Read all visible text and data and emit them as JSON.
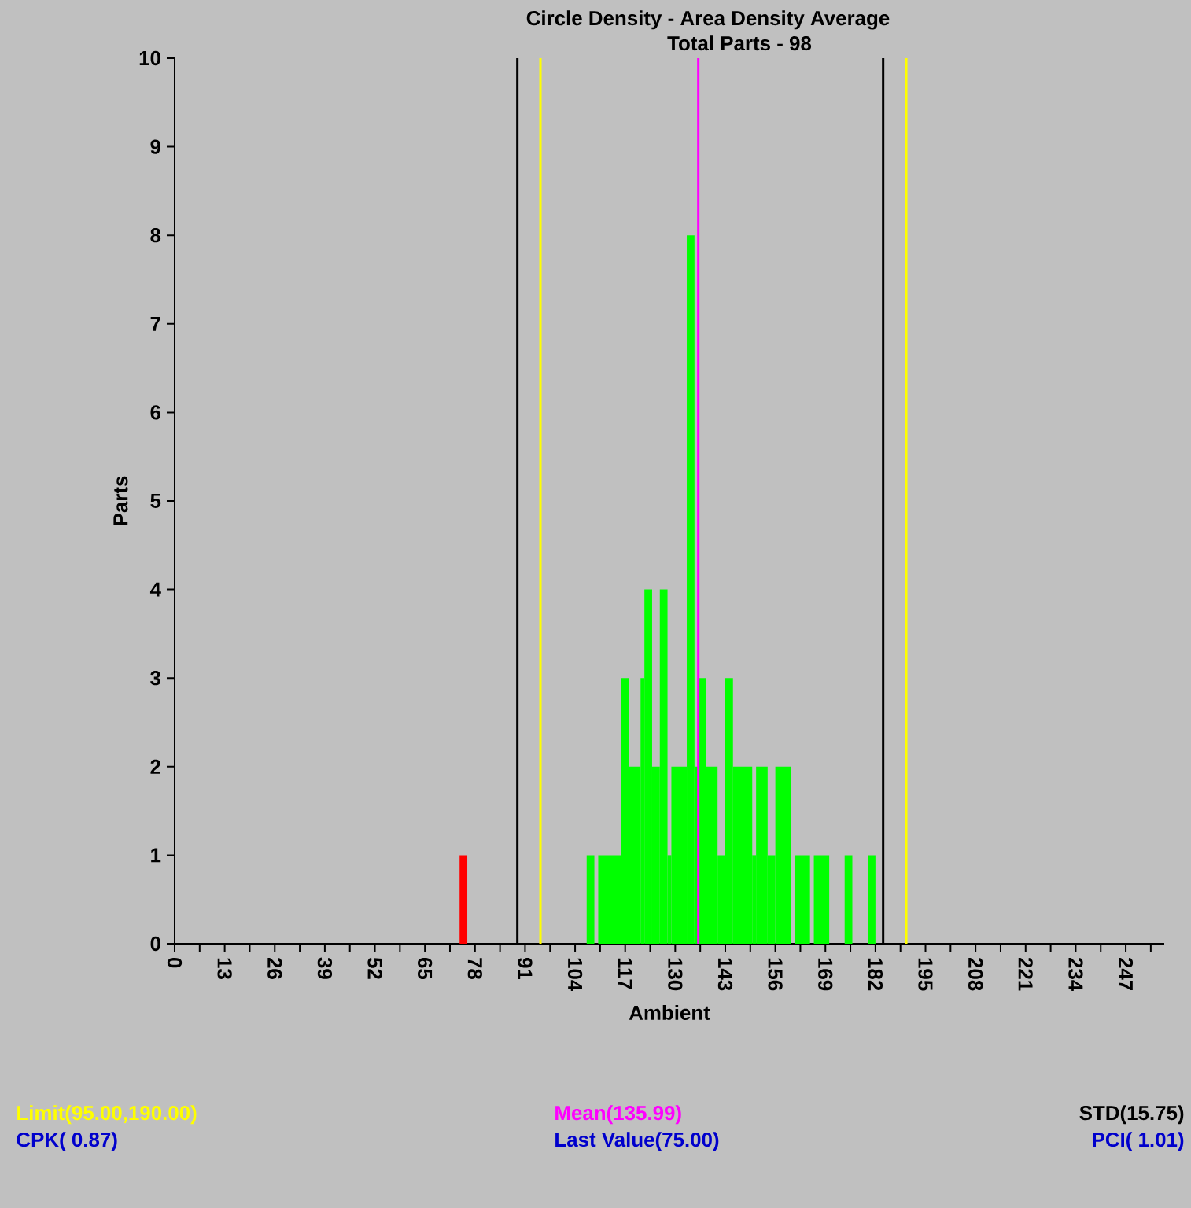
{
  "chart_data": {
    "type": "histogram",
    "title": "Circle Density - Area Density Average",
    "subtitle": "Total Parts - 98",
    "xlabel": "Ambient",
    "ylabel": "Parts",
    "bins": [
      74,
      76,
      107,
      109,
      110,
      116,
      118,
      121,
      122,
      124,
      126,
      128,
      129,
      133,
      135,
      136,
      138,
      141,
      143,
      145,
      150,
      151,
      154,
      156,
      160,
      161,
      165,
      166,
      170,
      174,
      176,
      180,
      182
    ],
    "values": [
      1,
      0,
      1,
      0,
      1,
      3,
      2,
      3,
      4,
      2,
      4,
      1,
      2,
      8,
      2,
      3,
      2,
      1,
      3,
      2,
      1,
      2,
      1,
      2,
      0,
      1,
      0,
      1,
      0,
      1,
      0,
      1
    ],
    "colors": [
      "#ff0000",
      "#00ff00",
      "#00ff00",
      "#00ff00",
      "#00ff00",
      "#00ff00",
      "#00ff00",
      "#00ff00",
      "#00ff00",
      "#00ff00",
      "#00ff00",
      "#00ff00",
      "#00ff00",
      "#00ff00",
      "#00ff00",
      "#00ff00",
      "#00ff00",
      "#00ff00",
      "#00ff00",
      "#00ff00",
      "#00ff00",
      "#00ff00",
      "#00ff00",
      "#00ff00",
      "#00ff00",
      "#00ff00",
      "#00ff00",
      "#00ff00",
      "#00ff00",
      "#00ff00",
      "#00ff00",
      "#00ff00"
    ],
    "xlim": [
      0,
      257
    ],
    "ylim": [
      0,
      10
    ],
    "xticks": [
      0,
      13,
      26,
      39,
      52,
      65,
      78,
      91,
      104,
      117,
      130,
      143,
      156,
      169,
      182,
      195,
      208,
      221,
      234,
      247
    ],
    "yticks": [
      0,
      1,
      2,
      3,
      4,
      5,
      6,
      7,
      8,
      9,
      10
    ],
    "ref_lines": [
      {
        "axis": "x",
        "value": 89,
        "color": "#000000"
      },
      {
        "axis": "x",
        "value": 95,
        "color": "#ffff00"
      },
      {
        "axis": "x",
        "value": 135.99,
        "color": "#ff00ff"
      },
      {
        "axis": "x",
        "value": 184,
        "color": "#000000"
      },
      {
        "axis": "x",
        "value": 190,
        "color": "#ffff00"
      }
    ],
    "annotations": [
      "Limit(95.00,190.00)",
      "Mean(135.99)",
      "STD(15.75)",
      "CPK( 0.87)",
      "Last Value(75.00)",
      "PCI( 1.01)"
    ],
    "grid": false
  }
}
